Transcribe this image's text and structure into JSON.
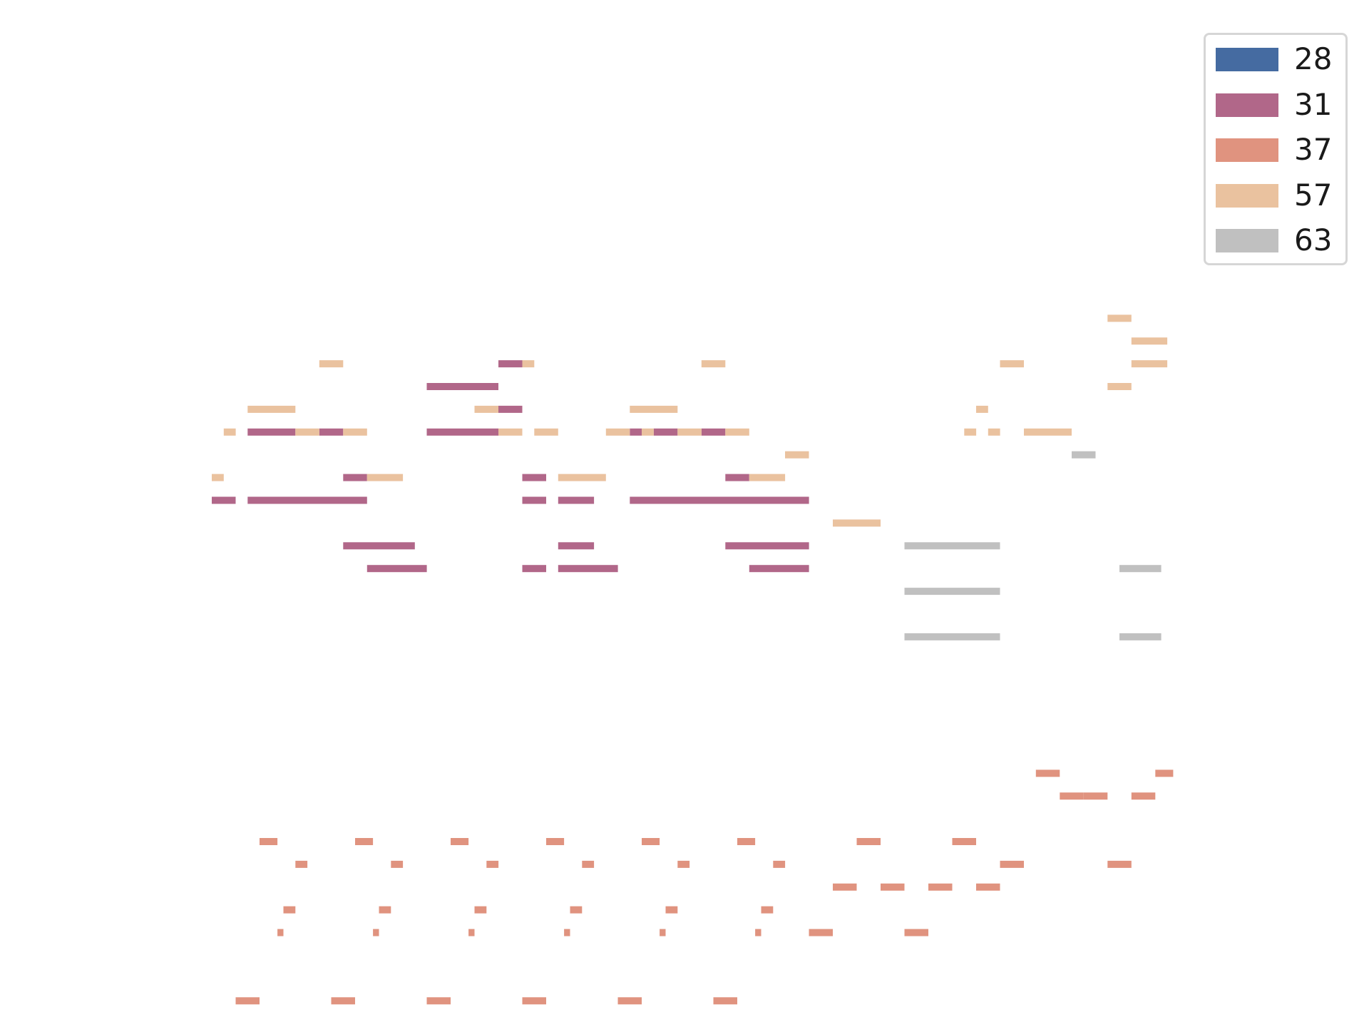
{
  "chart_data": {
    "type": "piano-roll",
    "title": "",
    "xlabel": "",
    "ylabel": "",
    "axes_visible": false,
    "grid": false,
    "legend_position": "top-right",
    "xlim": [
      0,
      80
    ],
    "ylim": [
      22,
      91
    ],
    "series": [
      {
        "name": "28",
        "color": "#456ba1",
        "notes": []
      },
      {
        "name": "31",
        "color": "#b16789",
        "notes": [
          [
            0,
            2,
            65
          ],
          [
            3,
            13,
            65
          ],
          [
            3,
            7,
            68
          ],
          [
            9,
            11,
            68
          ],
          [
            11,
            13,
            66
          ],
          [
            11,
            17,
            63
          ],
          [
            13,
            18,
            62
          ],
          [
            18,
            24,
            68
          ],
          [
            18,
            24,
            70
          ],
          [
            24,
            26,
            71
          ],
          [
            24,
            26,
            69
          ],
          [
            26,
            28,
            66
          ],
          [
            26,
            28,
            65
          ],
          [
            26,
            28,
            62
          ],
          [
            29,
            32,
            65
          ],
          [
            29,
            34,
            62
          ],
          [
            29,
            32,
            63
          ],
          [
            35,
            36,
            68
          ],
          [
            35,
            50,
            65
          ],
          [
            37,
            39,
            68
          ],
          [
            41,
            43,
            68
          ],
          [
            43,
            50,
            63
          ],
          [
            43,
            45,
            66
          ],
          [
            45,
            50,
            62
          ]
        ]
      },
      {
        "name": "37",
        "color": "#e0937f",
        "notes": [
          [
            4,
            5.5,
            50
          ],
          [
            7,
            8,
            49
          ],
          [
            6,
            7,
            47
          ],
          [
            5.5,
            6,
            46
          ],
          [
            2,
            4,
            43
          ],
          [
            12,
            13.5,
            50
          ],
          [
            15,
            16,
            49
          ],
          [
            14,
            15,
            47
          ],
          [
            13.5,
            14,
            46
          ],
          [
            10,
            12,
            43
          ],
          [
            20,
            21.5,
            50
          ],
          [
            23,
            24,
            49
          ],
          [
            22,
            23,
            47
          ],
          [
            21.5,
            22,
            46
          ],
          [
            18,
            20,
            43
          ],
          [
            28,
            29.5,
            50
          ],
          [
            31,
            32,
            49
          ],
          [
            30,
            31,
            47
          ],
          [
            29.5,
            30,
            46
          ],
          [
            26,
            28,
            43
          ],
          [
            36,
            37.5,
            50
          ],
          [
            39,
            40,
            49
          ],
          [
            38,
            39,
            47
          ],
          [
            37.5,
            38,
            46
          ],
          [
            34,
            36,
            43
          ],
          [
            44,
            45.5,
            50
          ],
          [
            47,
            48,
            49
          ],
          [
            46,
            47,
            47
          ],
          [
            45.5,
            46,
            46
          ],
          [
            42,
            44,
            43
          ],
          [
            54,
            56,
            50
          ],
          [
            52,
            54,
            48
          ],
          [
            56,
            58,
            48
          ],
          [
            50,
            52,
            46
          ],
          [
            62,
            64,
            50
          ],
          [
            60,
            62,
            48
          ],
          [
            64,
            66,
            48
          ],
          [
            58,
            60,
            46
          ],
          [
            66,
            68,
            49
          ],
          [
            69,
            71,
            53
          ],
          [
            71,
            73,
            52
          ],
          [
            73,
            75,
            52
          ],
          [
            75,
            77,
            49
          ],
          [
            77,
            79,
            52
          ],
          [
            79,
            80.5,
            53
          ]
        ]
      },
      {
        "name": "57",
        "color": "#eac29f",
        "notes": [
          [
            0,
            1,
            66
          ],
          [
            1,
            2,
            68
          ],
          [
            3,
            7,
            69
          ],
          [
            7,
            9,
            68
          ],
          [
            9,
            11,
            71
          ],
          [
            11,
            13,
            68
          ],
          [
            13,
            16,
            66
          ],
          [
            22,
            24,
            69
          ],
          [
            24,
            26,
            68
          ],
          [
            26,
            27,
            71
          ],
          [
            27,
            29,
            68
          ],
          [
            29,
            33,
            66
          ],
          [
            33,
            35,
            68
          ],
          [
            35,
            39,
            69
          ],
          [
            36,
            37,
            68
          ],
          [
            39,
            41,
            68
          ],
          [
            41,
            43,
            71
          ],
          [
            43,
            45,
            68
          ],
          [
            45,
            48,
            66
          ],
          [
            48,
            50,
            67
          ],
          [
            52,
            56,
            64
          ],
          [
            63,
            64,
            68
          ],
          [
            64,
            65,
            69
          ],
          [
            65,
            66,
            68
          ],
          [
            66,
            68,
            71
          ],
          [
            68,
            72,
            68
          ],
          [
            75,
            77,
            73
          ],
          [
            77,
            80,
            72
          ],
          [
            75,
            77,
            70
          ],
          [
            77,
            80,
            71
          ]
        ]
      },
      {
        "name": "63",
        "color": "#c0c0c0",
        "notes": [
          [
            58,
            66,
            63
          ],
          [
            58,
            66,
            61
          ],
          [
            58,
            66,
            59
          ],
          [
            72,
            74,
            67
          ],
          [
            76,
            79.5,
            62
          ],
          [
            76,
            79.5,
            59
          ]
        ]
      }
    ]
  }
}
